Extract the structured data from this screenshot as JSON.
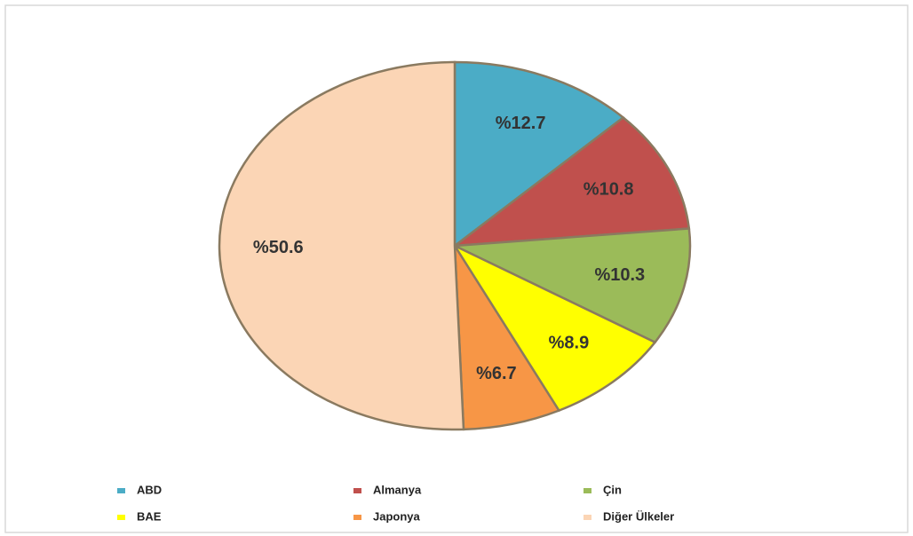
{
  "chart_data": {
    "type": "pie",
    "categories": [
      "ABD",
      "Almanya",
      "Çin",
      "BAE",
      "Japonya",
      "Diğer Ülkeler"
    ],
    "values": [
      12.7,
      10.8,
      10.3,
      8.9,
      6.7,
      50.6
    ],
    "value_labels": [
      "%12.7",
      "%10.8",
      "%10.3",
      "%8.9",
      "%6.7",
      "%50.6"
    ],
    "colors": [
      "#4bacc6",
      "#c0504d",
      "#9bbb59",
      "#ffff00",
      "#f79646",
      "#fbd5b5"
    ],
    "legend": "bottom"
  }
}
